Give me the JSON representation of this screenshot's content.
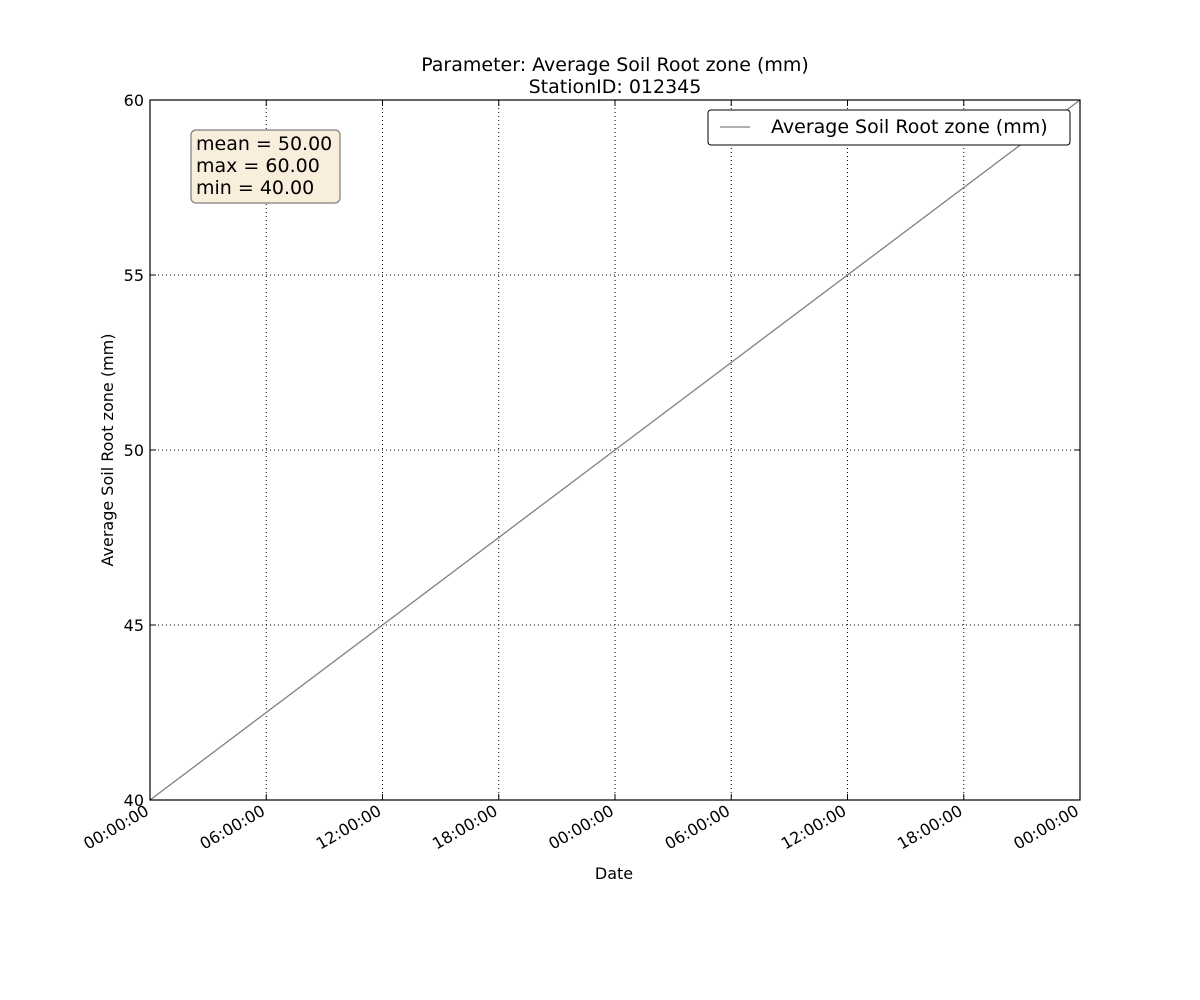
{
  "chart_data": {
    "type": "line",
    "title": "Parameter: Average Soil Root zone (mm)",
    "subtitle": "StationID: 012345",
    "xlabel": "Date",
    "ylabel": "Average Soil Root zone (mm)",
    "x_ticks": [
      "00:00:00",
      "06:00:00",
      "12:00:00",
      "18:00:00",
      "00:00:00",
      "06:00:00",
      "12:00:00",
      "18:00:00",
      "00:00:00"
    ],
    "y_ticks": [
      "40",
      "45",
      "50",
      "55",
      "60"
    ],
    "ylim": [
      40,
      60
    ],
    "series": [
      {
        "name": "Average Soil Root zone (mm)",
        "color": "#808080",
        "x": [
          "00:00:00",
          "00:00:00",
          "00:00:00"
        ],
        "y": [
          40,
          50,
          60
        ]
      }
    ],
    "stats": {
      "mean": "mean = 50.00",
      "max": "max = 60.00",
      "min": "min = 40.00"
    },
    "grid": true,
    "legend_position": "top-right",
    "colors": {
      "line": "#808080",
      "stats_box_fill": "#f9eddb",
      "stats_box_border": "#7f7f7f",
      "grid": "#000000"
    }
  }
}
